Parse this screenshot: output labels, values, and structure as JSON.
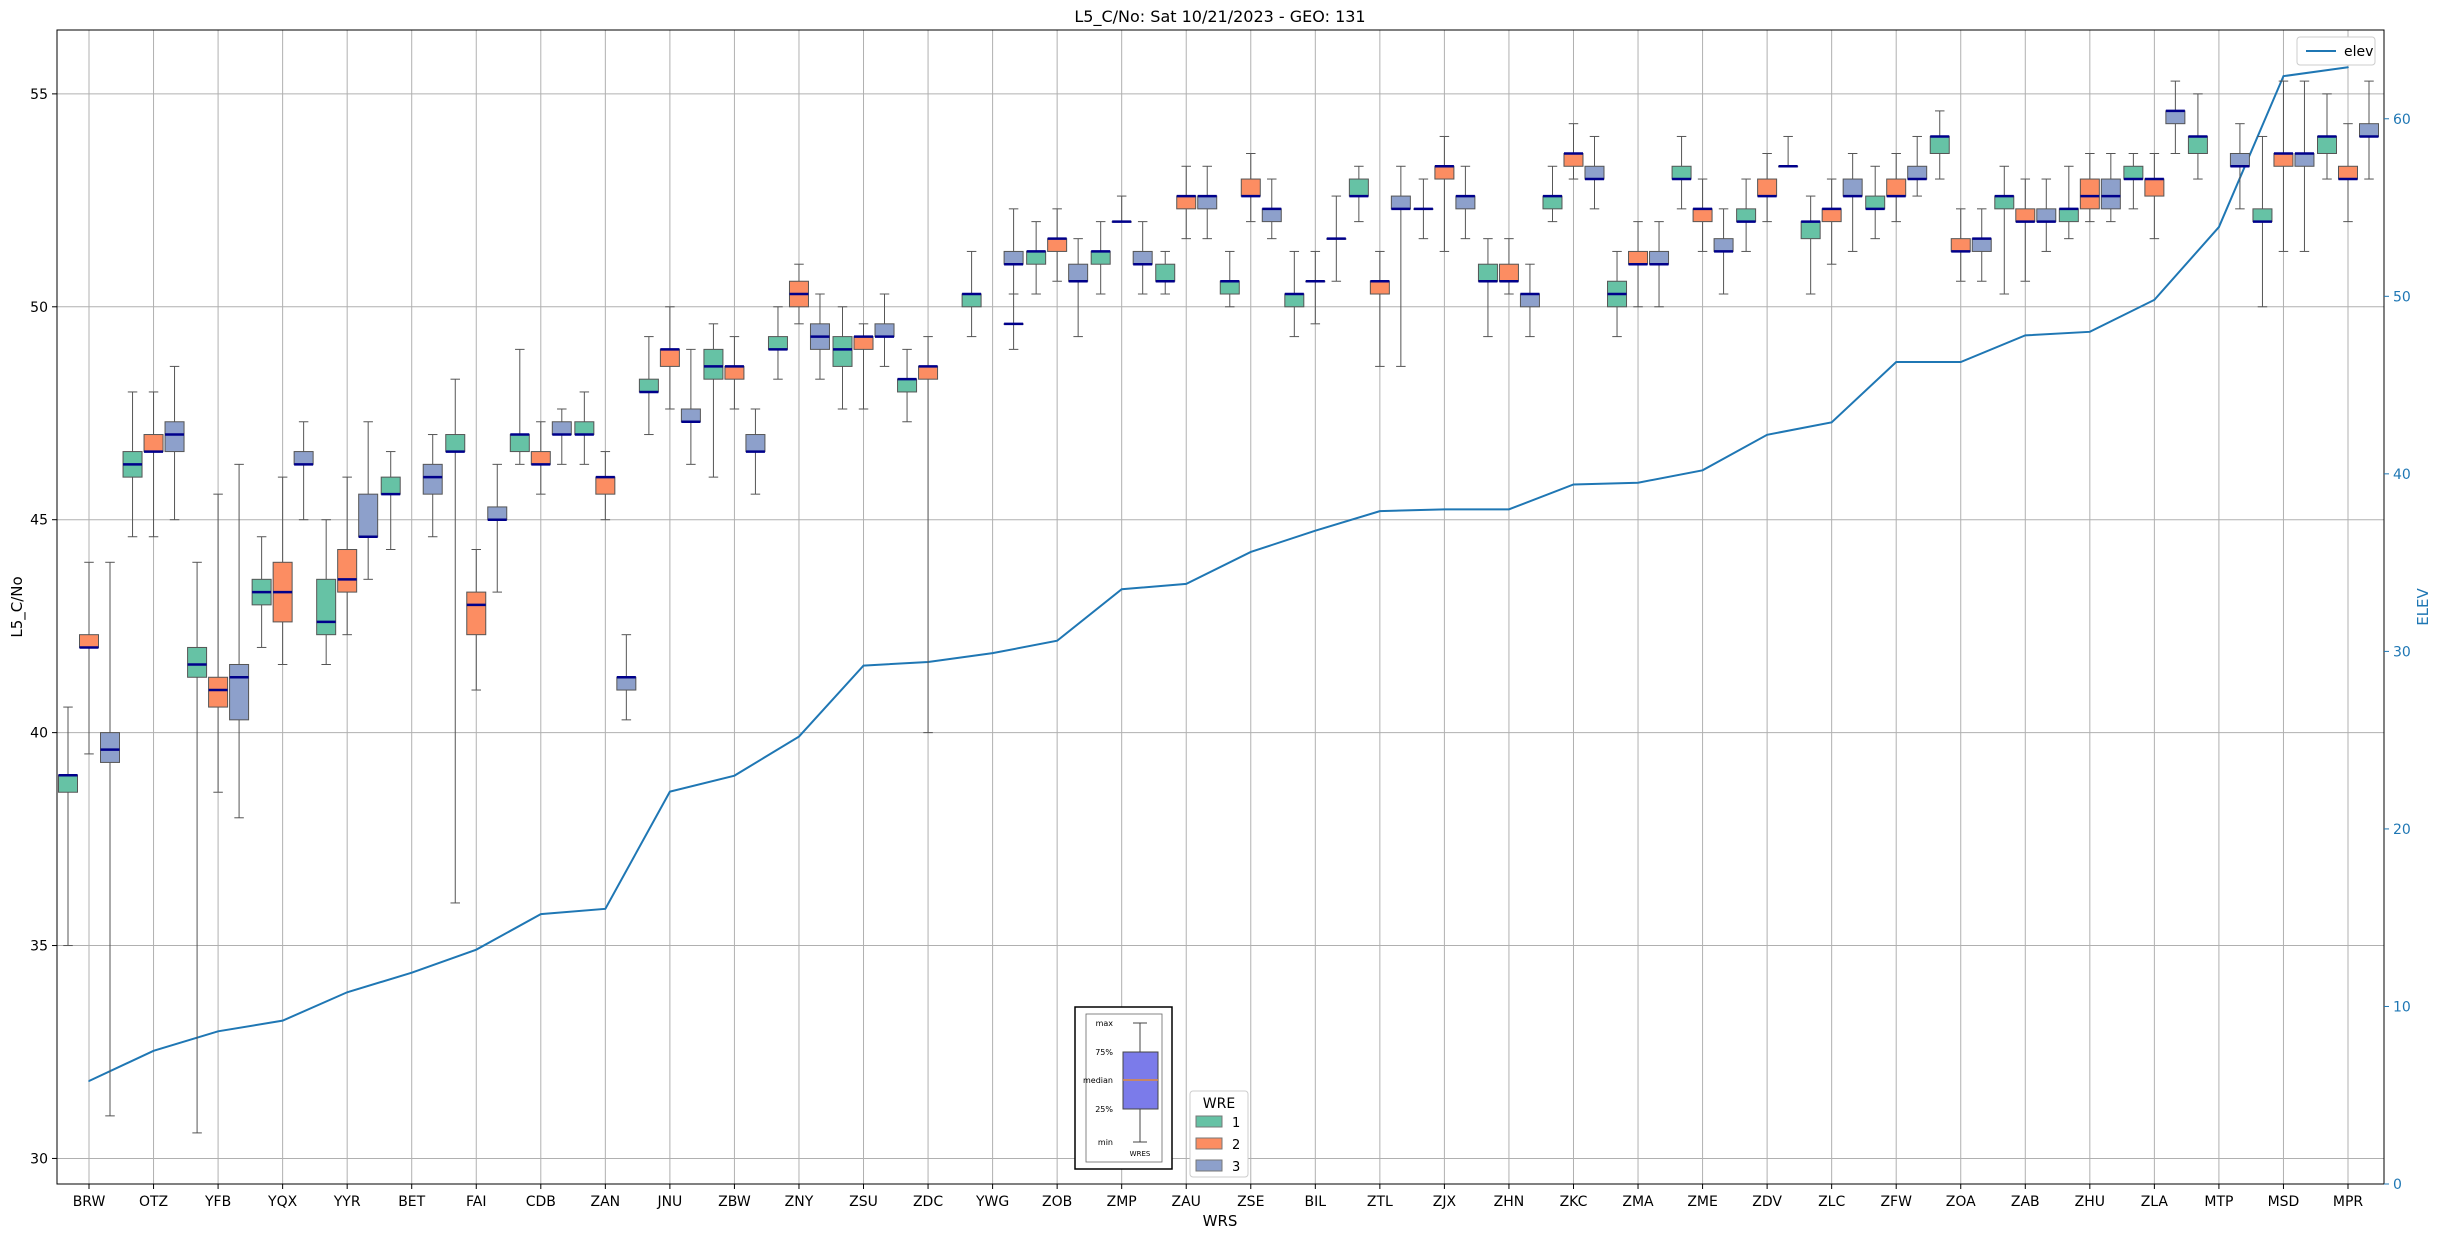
{
  "chart_data": {
    "type": "box",
    "title": "L5_C/No: Sat 10/21/2023 - GEO: 131",
    "xlabel": "WRS",
    "ylabel": "L5_C/No",
    "y2label": "ELEV",
    "ylim": [
      29.4,
      56.5
    ],
    "y2lim": [
      0,
      65
    ],
    "yticks": [
      30,
      35,
      40,
      45,
      50,
      55
    ],
    "y2ticks": [
      0,
      10,
      20,
      30,
      40,
      50,
      60
    ],
    "grid": true,
    "colors": {
      "wre1": "#66c2a5",
      "wre2": "#fc8d62",
      "wre3": "#8da0cb",
      "elev": "#1f77b4",
      "median": "#00008b",
      "axis2": "#1f77b4"
    },
    "categories": [
      "BRW",
      "OTZ",
      "YFB",
      "YQX",
      "YYR",
      "BET",
      "FAI",
      "CDB",
      "ZAN",
      "JNU",
      "ZBW",
      "ZNY",
      "ZSU",
      "ZDC",
      "YWG",
      "ZOB",
      "ZMP",
      "ZAU",
      "ZSE",
      "BIL",
      "ZTL",
      "ZJX",
      "ZHN",
      "ZKC",
      "ZMA",
      "ZME",
      "ZDV",
      "ZLC",
      "ZFW",
      "ZOA",
      "ZAB",
      "ZHU",
      "ZLA",
      "MTP",
      "MSD",
      "MPR"
    ],
    "elev_series": {
      "name": "elev",
      "values": [
        5.8,
        7.5,
        8.6,
        9.2,
        10.8,
        11.9,
        13.2,
        15.2,
        15.5,
        22.1,
        23.0,
        25.2,
        29.2,
        29.4,
        29.9,
        30.6,
        33.5,
        33.8,
        35.6,
        36.8,
        37.9,
        38.0,
        38.0,
        39.4,
        39.5,
        40.2,
        42.2,
        42.9,
        46.3,
        46.3,
        47.8,
        48.0,
        49.8,
        53.9,
        62.4,
        62.9
      ]
    },
    "legend_elev": {
      "label": "elev",
      "position": "upper-right"
    },
    "legend_wre": {
      "title": "WRE",
      "labels": [
        "1",
        "2",
        "3"
      ],
      "position": "lower-center"
    },
    "inset_legend": {
      "labels": [
        "max",
        "75%",
        "median",
        "25%",
        "min"
      ],
      "xlabel": "WRES"
    },
    "boxes": [
      {
        "station": "BRW",
        "wre": 1,
        "min": 35.0,
        "q1": 38.6,
        "median": 39.0,
        "q3": 39.0,
        "max": 40.6
      },
      {
        "station": "BRW",
        "wre": 2,
        "min": 39.5,
        "q1": 42.0,
        "median": 42.0,
        "q3": 42.3,
        "max": 44.0
      },
      {
        "station": "BRW",
        "wre": 3,
        "min": 31.0,
        "q1": 39.3,
        "median": 39.6,
        "q3": 40.0,
        "max": 44.0
      },
      {
        "station": "OTZ",
        "wre": 1,
        "min": 44.6,
        "q1": 46.0,
        "median": 46.3,
        "q3": 46.6,
        "max": 48.0
      },
      {
        "station": "OTZ",
        "wre": 2,
        "min": 44.6,
        "q1": 46.6,
        "median": 46.6,
        "q3": 47.0,
        "max": 48.0
      },
      {
        "station": "OTZ",
        "wre": 3,
        "min": 45.0,
        "q1": 46.6,
        "median": 47.0,
        "q3": 47.3,
        "max": 48.6
      },
      {
        "station": "YFB",
        "wre": 1,
        "min": 30.6,
        "q1": 41.3,
        "median": 41.6,
        "q3": 42.0,
        "max": 44.0
      },
      {
        "station": "YFB",
        "wre": 2,
        "min": 38.6,
        "q1": 40.6,
        "median": 41.0,
        "q3": 41.3,
        "max": 45.6
      },
      {
        "station": "YFB",
        "wre": 3,
        "min": 38.0,
        "q1": 40.3,
        "median": 41.3,
        "q3": 41.6,
        "max": 46.3
      },
      {
        "station": "YQX",
        "wre": 1,
        "min": 42.0,
        "q1": 43.0,
        "median": 43.3,
        "q3": 43.6,
        "max": 44.6
      },
      {
        "station": "YQX",
        "wre": 2,
        "min": 41.6,
        "q1": 42.6,
        "median": 43.3,
        "q3": 44.0,
        "max": 46.0
      },
      {
        "station": "YQX",
        "wre": 3,
        "min": 45.0,
        "q1": 46.3,
        "median": 46.3,
        "q3": 46.6,
        "max": 47.3
      },
      {
        "station": "YYR",
        "wre": 1,
        "min": 41.6,
        "q1": 42.3,
        "median": 42.6,
        "q3": 43.6,
        "max": 45.0
      },
      {
        "station": "YYR",
        "wre": 2,
        "min": 42.3,
        "q1": 43.3,
        "median": 43.6,
        "q3": 44.3,
        "max": 46.0
      },
      {
        "station": "YYR",
        "wre": 3,
        "min": 43.6,
        "q1": 44.6,
        "median": 44.6,
        "q3": 45.6,
        "max": 47.3
      },
      {
        "station": "BET",
        "wre": 1,
        "min": 44.3,
        "q1": 45.6,
        "median": 45.6,
        "q3": 46.0,
        "max": 46.6
      },
      {
        "station": "BET",
        "wre": 3,
        "min": 44.6,
        "q1": 45.6,
        "median": 46.0,
        "q3": 46.3,
        "max": 47.0
      },
      {
        "station": "FAI",
        "wre": 1,
        "min": 36.0,
        "q1": 46.6,
        "median": 46.6,
        "q3": 47.0,
        "max": 48.3
      },
      {
        "station": "FAI",
        "wre": 2,
        "min": 41.0,
        "q1": 42.3,
        "median": 43.0,
        "q3": 43.3,
        "max": 44.3
      },
      {
        "station": "FAI",
        "wre": 3,
        "min": 43.3,
        "q1": 45.0,
        "median": 45.0,
        "q3": 45.3,
        "max": 46.3
      },
      {
        "station": "CDB",
        "wre": 1,
        "min": 46.3,
        "q1": 46.6,
        "median": 47.0,
        "q3": 47.0,
        "max": 49.0
      },
      {
        "station": "CDB",
        "wre": 2,
        "min": 45.6,
        "q1": 46.3,
        "median": 46.3,
        "q3": 46.6,
        "max": 47.3
      },
      {
        "station": "CDB",
        "wre": 3,
        "min": 46.3,
        "q1": 47.0,
        "median": 47.0,
        "q3": 47.3,
        "max": 47.6
      },
      {
        "station": "ZAN",
        "wre": 1,
        "min": 46.3,
        "q1": 47.0,
        "median": 47.0,
        "q3": 47.3,
        "max": 48.0
      },
      {
        "station": "ZAN",
        "wre": 2,
        "min": 45.0,
        "q1": 45.6,
        "median": 46.0,
        "q3": 46.0,
        "max": 46.6
      },
      {
        "station": "ZAN",
        "wre": 3,
        "min": 40.3,
        "q1": 41.0,
        "median": 41.3,
        "q3": 41.3,
        "max": 42.3
      },
      {
        "station": "JNU",
        "wre": 1,
        "min": 47.0,
        "q1": 48.0,
        "median": 48.0,
        "q3": 48.3,
        "max": 49.3
      },
      {
        "station": "JNU",
        "wre": 2,
        "min": 47.6,
        "q1": 48.6,
        "median": 49.0,
        "q3": 49.0,
        "max": 50.0
      },
      {
        "station": "JNU",
        "wre": 3,
        "min": 46.3,
        "q1": 47.3,
        "median": 47.3,
        "q3": 47.6,
        "max": 49.0
      },
      {
        "station": "ZBW",
        "wre": 1,
        "min": 46.0,
        "q1": 48.3,
        "median": 48.6,
        "q3": 49.0,
        "max": 49.6
      },
      {
        "station": "ZBW",
        "wre": 2,
        "min": 47.6,
        "q1": 48.3,
        "median": 48.6,
        "q3": 48.6,
        "max": 49.3
      },
      {
        "station": "ZBW",
        "wre": 3,
        "min": 45.6,
        "q1": 46.6,
        "median": 46.6,
        "q3": 47.0,
        "max": 47.6
      },
      {
        "station": "ZNY",
        "wre": 1,
        "min": 48.3,
        "q1": 49.0,
        "median": 49.0,
        "q3": 49.3,
        "max": 50.0
      },
      {
        "station": "ZNY",
        "wre": 2,
        "min": 49.6,
        "q1": 50.0,
        "median": 50.3,
        "q3": 50.6,
        "max": 51.0
      },
      {
        "station": "ZNY",
        "wre": 3,
        "min": 48.3,
        "q1": 49.0,
        "median": 49.3,
        "q3": 49.6,
        "max": 50.3
      },
      {
        "station": "ZSU",
        "wre": 1,
        "min": 47.6,
        "q1": 48.6,
        "median": 49.0,
        "q3": 49.3,
        "max": 50.0
      },
      {
        "station": "ZSU",
        "wre": 2,
        "min": 47.6,
        "q1": 49.0,
        "median": 49.3,
        "q3": 49.3,
        "max": 49.6
      },
      {
        "station": "ZSU",
        "wre": 3,
        "min": 48.6,
        "q1": 49.3,
        "median": 49.3,
        "q3": 49.6,
        "max": 50.3
      },
      {
        "station": "ZDC",
        "wre": 1,
        "min": 47.3,
        "q1": 48.0,
        "median": 48.3,
        "q3": 48.3,
        "max": 49.0
      },
      {
        "station": "ZDC",
        "wre": 2,
        "min": 40.0,
        "q1": 48.3,
        "median": 48.6,
        "q3": 48.6,
        "max": 49.3
      },
      {
        "station": "YWG",
        "wre": 3,
        "min": 49.0,
        "q1": 49.6,
        "median": 49.6,
        "q3": 49.6,
        "max": 50.3
      },
      {
        "station": "YWG",
        "wre": 1,
        "min": 49.3,
        "q1": 50.0,
        "median": 50.3,
        "q3": 50.3,
        "max": 51.3
      },
      {
        "station": "YWG",
        "wre": 3,
        "min": 50.3,
        "q1": 51.0,
        "median": 51.0,
        "q3": 51.3,
        "max": 52.3
      },
      {
        "station": "ZOB",
        "wre": 1,
        "min": 50.3,
        "q1": 51.0,
        "median": 51.3,
        "q3": 51.3,
        "max": 52.0
      },
      {
        "station": "ZOB",
        "wre": 2,
        "min": 50.6,
        "q1": 51.3,
        "median": 51.6,
        "q3": 51.6,
        "max": 52.3
      },
      {
        "station": "ZOB",
        "wre": 3,
        "min": 49.3,
        "q1": 50.6,
        "median": 50.6,
        "q3": 51.0,
        "max": 51.6
      },
      {
        "station": "ZMP",
        "wre": 1,
        "min": 50.3,
        "q1": 51.0,
        "median": 51.3,
        "q3": 51.3,
        "max": 52.0
      },
      {
        "station": "ZMP",
        "wre": 2,
        "min": 52.0,
        "q1": 52.0,
        "median": 52.0,
        "q3": 52.0,
        "max": 52.6
      },
      {
        "station": "ZMP",
        "wre": 3,
        "min": 50.3,
        "q1": 51.0,
        "median": 51.0,
        "q3": 51.3,
        "max": 52.0
      },
      {
        "station": "ZAU",
        "wre": 1,
        "min": 50.3,
        "q1": 50.6,
        "median": 50.6,
        "q3": 51.0,
        "max": 51.3
      },
      {
        "station": "ZAU",
        "wre": 2,
        "min": 51.6,
        "q1": 52.3,
        "median": 52.6,
        "q3": 52.6,
        "max": 53.3
      },
      {
        "station": "ZAU",
        "wre": 3,
        "min": 51.6,
        "q1": 52.3,
        "median": 52.6,
        "q3": 52.6,
        "max": 53.3
      },
      {
        "station": "ZSE",
        "wre": 1,
        "min": 50.0,
        "q1": 50.3,
        "median": 50.6,
        "q3": 50.6,
        "max": 51.3
      },
      {
        "station": "ZSE",
        "wre": 2,
        "min": 52.0,
        "q1": 52.6,
        "median": 52.6,
        "q3": 53.0,
        "max": 53.6
      },
      {
        "station": "ZSE",
        "wre": 3,
        "min": 51.6,
        "q1": 52.0,
        "median": 52.3,
        "q3": 52.3,
        "max": 53.0
      },
      {
        "station": "BIL",
        "wre": 1,
        "min": 49.3,
        "q1": 50.0,
        "median": 50.3,
        "q3": 50.3,
        "max": 51.3
      },
      {
        "station": "BIL",
        "wre": 2,
        "min": 49.6,
        "q1": 50.6,
        "median": 50.6,
        "q3": 50.6,
        "max": 51.3
      },
      {
        "station": "BIL",
        "wre": 3,
        "min": 50.6,
        "q1": 51.6,
        "median": 51.6,
        "q3": 51.6,
        "max": 52.6
      },
      {
        "station": "ZTL",
        "wre": 1,
        "min": 52.0,
        "q1": 52.6,
        "median": 52.6,
        "q3": 53.0,
        "max": 53.3
      },
      {
        "station": "ZTL",
        "wre": 2,
        "min": 48.6,
        "q1": 50.3,
        "median": 50.6,
        "q3": 50.6,
        "max": 51.3
      },
      {
        "station": "ZTL",
        "wre": 3,
        "min": 48.6,
        "q1": 52.3,
        "median": 52.3,
        "q3": 52.6,
        "max": 53.3
      },
      {
        "station": "ZJX",
        "wre": 1,
        "min": 51.6,
        "q1": 52.3,
        "median": 52.3,
        "q3": 52.3,
        "max": 53.0
      },
      {
        "station": "ZJX",
        "wre": 2,
        "min": 51.3,
        "q1": 53.0,
        "median": 53.3,
        "q3": 53.3,
        "max": 54.0
      },
      {
        "station": "ZJX",
        "wre": 3,
        "min": 51.6,
        "q1": 52.3,
        "median": 52.6,
        "q3": 52.6,
        "max": 53.3
      },
      {
        "station": "ZHN",
        "wre": 1,
        "min": 49.3,
        "q1": 50.6,
        "median": 50.6,
        "q3": 51.0,
        "max": 51.6
      },
      {
        "station": "ZHN",
        "wre": 2,
        "min": 50.3,
        "q1": 50.6,
        "median": 50.6,
        "q3": 51.0,
        "max": 51.6
      },
      {
        "station": "ZHN",
        "wre": 3,
        "min": 49.3,
        "q1": 50.0,
        "median": 50.3,
        "q3": 50.3,
        "max": 51.0
      },
      {
        "station": "ZKC",
        "wre": 1,
        "min": 52.0,
        "q1": 52.3,
        "median": 52.6,
        "q3": 52.6,
        "max": 53.3
      },
      {
        "station": "ZKC",
        "wre": 2,
        "min": 53.0,
        "q1": 53.3,
        "median": 53.6,
        "q3": 53.6,
        "max": 54.3
      },
      {
        "station": "ZKC",
        "wre": 3,
        "min": 52.3,
        "q1": 53.0,
        "median": 53.0,
        "q3": 53.3,
        "max": 54.0
      },
      {
        "station": "ZMA",
        "wre": 1,
        "min": 49.3,
        "q1": 50.0,
        "median": 50.3,
        "q3": 50.6,
        "max": 51.3
      },
      {
        "station": "ZMA",
        "wre": 2,
        "min": 50.0,
        "q1": 51.0,
        "median": 51.0,
        "q3": 51.3,
        "max": 52.0
      },
      {
        "station": "ZMA",
        "wre": 3,
        "min": 50.0,
        "q1": 51.0,
        "median": 51.0,
        "q3": 51.3,
        "max": 52.0
      },
      {
        "station": "ZME",
        "wre": 1,
        "min": 52.3,
        "q1": 53.0,
        "median": 53.0,
        "q3": 53.3,
        "max": 54.0
      },
      {
        "station": "ZME",
        "wre": 2,
        "min": 51.3,
        "q1": 52.0,
        "median": 52.3,
        "q3": 52.3,
        "max": 53.0
      },
      {
        "station": "ZME",
        "wre": 3,
        "min": 50.3,
        "q1": 51.3,
        "median": 51.3,
        "q3": 51.6,
        "max": 52.3
      },
      {
        "station": "ZDV",
        "wre": 1,
        "min": 51.3,
        "q1": 52.0,
        "median": 52.0,
        "q3": 52.3,
        "max": 53.0
      },
      {
        "station": "ZDV",
        "wre": 2,
        "min": 52.0,
        "q1": 52.6,
        "median": 52.6,
        "q3": 53.0,
        "max": 53.6
      },
      {
        "station": "ZDV",
        "wre": 3,
        "min": 53.3,
        "q1": 53.3,
        "median": 53.3,
        "q3": 53.3,
        "max": 54.0
      },
      {
        "station": "ZLC",
        "wre": 1,
        "min": 50.3,
        "q1": 51.6,
        "median": 52.0,
        "q3": 52.0,
        "max": 52.6
      },
      {
        "station": "ZLC",
        "wre": 2,
        "min": 51.0,
        "q1": 52.0,
        "median": 52.3,
        "q3": 52.3,
        "max": 53.0
      },
      {
        "station": "ZLC",
        "wre": 3,
        "min": 51.3,
        "q1": 52.6,
        "median": 52.6,
        "q3": 53.0,
        "max": 53.6
      },
      {
        "station": "ZFW",
        "wre": 1,
        "min": 51.6,
        "q1": 52.3,
        "median": 52.3,
        "q3": 52.6,
        "max": 53.3
      },
      {
        "station": "ZFW",
        "wre": 2,
        "min": 52.0,
        "q1": 52.6,
        "median": 52.6,
        "q3": 53.0,
        "max": 53.6
      },
      {
        "station": "ZFW",
        "wre": 3,
        "min": 52.6,
        "q1": 53.0,
        "median": 53.0,
        "q3": 53.3,
        "max": 54.0
      },
      {
        "station": "ZOA",
        "wre": 1,
        "min": 53.0,
        "q1": 53.6,
        "median": 54.0,
        "q3": 54.0,
        "max": 54.6
      },
      {
        "station": "ZOA",
        "wre": 2,
        "min": 50.6,
        "q1": 51.3,
        "median": 51.3,
        "q3": 51.6,
        "max": 52.3
      },
      {
        "station": "ZOA",
        "wre": 3,
        "min": 50.6,
        "q1": 51.3,
        "median": 51.6,
        "q3": 51.6,
        "max": 52.3
      },
      {
        "station": "ZAB",
        "wre": 1,
        "min": 50.3,
        "q1": 52.3,
        "median": 52.6,
        "q3": 52.6,
        "max": 53.3
      },
      {
        "station": "ZAB",
        "wre": 2,
        "min": 50.6,
        "q1": 52.0,
        "median": 52.0,
        "q3": 52.3,
        "max": 53.0
      },
      {
        "station": "ZAB",
        "wre": 3,
        "min": 51.3,
        "q1": 52.0,
        "median": 52.0,
        "q3": 52.3,
        "max": 53.0
      },
      {
        "station": "ZHU",
        "wre": 1,
        "min": 51.6,
        "q1": 52.0,
        "median": 52.3,
        "q3": 52.3,
        "max": 53.3
      },
      {
        "station": "ZHU",
        "wre": 2,
        "min": 52.0,
        "q1": 52.3,
        "median": 52.6,
        "q3": 53.0,
        "max": 53.6
      },
      {
        "station": "ZHU",
        "wre": 3,
        "min": 52.0,
        "q1": 52.3,
        "median": 52.6,
        "q3": 53.0,
        "max": 53.6
      },
      {
        "station": "ZLA",
        "wre": 1,
        "min": 52.3,
        "q1": 53.0,
        "median": 53.0,
        "q3": 53.3,
        "max": 53.6
      },
      {
        "station": "ZLA",
        "wre": 2,
        "min": 51.6,
        "q1": 52.6,
        "median": 53.0,
        "q3": 53.0,
        "max": 53.6
      },
      {
        "station": "ZLA",
        "wre": 3,
        "min": 53.6,
        "q1": 54.3,
        "median": 54.6,
        "q3": 54.6,
        "max": 55.3
      },
      {
        "station": "MTP",
        "wre": 1,
        "min": 53.0,
        "q1": 53.6,
        "median": 54.0,
        "q3": 54.0,
        "max": 55.0
      },
      {
        "station": "MTP",
        "wre": 3,
        "min": 52.3,
        "q1": 53.3,
        "median": 53.3,
        "q3": 53.6,
        "max": 54.3
      },
      {
        "station": "MSD",
        "wre": 1,
        "min": 50.0,
        "q1": 52.0,
        "median": 52.0,
        "q3": 52.3,
        "max": 54.0
      },
      {
        "station": "MSD",
        "wre": 2,
        "min": 51.3,
        "q1": 53.3,
        "median": 53.6,
        "q3": 53.6,
        "max": 55.3
      },
      {
        "station": "MSD",
        "wre": 3,
        "min": 51.3,
        "q1": 53.3,
        "median": 53.6,
        "q3": 53.6,
        "max": 55.3
      },
      {
        "station": "MPR",
        "wre": 1,
        "min": 53.0,
        "q1": 53.6,
        "median": 54.0,
        "q3": 54.0,
        "max": 55.0
      },
      {
        "station": "MPR",
        "wre": 2,
        "min": 52.0,
        "q1": 53.0,
        "median": 53.0,
        "q3": 53.3,
        "max": 54.3
      },
      {
        "station": "MPR",
        "wre": 3,
        "min": 53.0,
        "q1": 54.0,
        "median": 54.0,
        "q3": 54.3,
        "max": 55.3
      }
    ]
  }
}
